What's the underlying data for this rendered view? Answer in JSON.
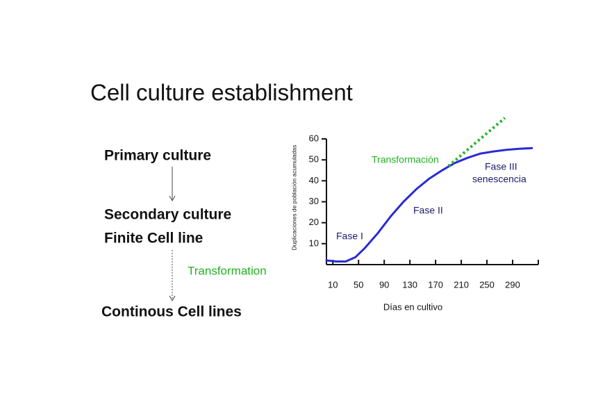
{
  "slide": {
    "title": "Cell culture establishment",
    "steps": [
      "Primary culture",
      "Secondary culture",
      "Finite Cell line",
      "Continous Cell lines"
    ],
    "transition": "Transformation"
  },
  "chart_data": {
    "type": "line",
    "xlabel": "Días en cultivo",
    "ylabel": "Duplicaciones de población acumuladas",
    "xlim": [
      0,
      330
    ],
    "xticks": [
      10,
      50,
      90,
      130,
      170,
      210,
      250,
      290
    ],
    "ylim": [
      0,
      60
    ],
    "yticks": [
      10,
      20,
      30,
      40,
      50,
      60
    ],
    "series": [
      {
        "color": "#2a2ad6",
        "style": "solid",
        "x": [
          0,
          15,
          30,
          45,
          60,
          80,
          100,
          120,
          140,
          160,
          180,
          200,
          220,
          240,
          260,
          280,
          300,
          320
        ],
        "values": [
          2,
          1.5,
          1.5,
          3.5,
          8,
          15,
          23,
          30,
          36,
          41,
          45,
          48.5,
          51,
          53,
          54,
          54.8,
          55.3,
          55.6
        ]
      },
      {
        "color": "#22b222",
        "style": "dotted",
        "x": [
          190,
          278
        ],
        "values": [
          47,
          70
        ]
      }
    ],
    "annotations": [
      {
        "text": "Fase I",
        "color": "#1a1a6e"
      },
      {
        "text": "Fase II",
        "color": "#1a1a6e"
      },
      {
        "text": "Fase III",
        "color": "#1a1a6e"
      },
      {
        "text": "senescencia",
        "color": "#1a1a6e"
      },
      {
        "text": "Transformación",
        "color": "#22b222"
      }
    ]
  }
}
